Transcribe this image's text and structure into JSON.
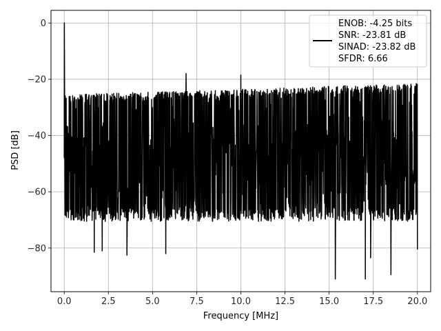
{
  "chart_data": {
    "type": "line",
    "title": "",
    "xlabel": "Frequency [MHz]",
    "ylabel": "PSD [dB]",
    "xlim": [
      -0.75,
      20.75
    ],
    "ylim": [
      -95.5,
      4.5
    ],
    "xticks": [
      0.0,
      2.5,
      5.0,
      7.5,
      10.0,
      12.5,
      15.0,
      17.5,
      20.0
    ],
    "xtick_labels": [
      "0.0",
      "2.5",
      "5.0",
      "7.5",
      "10.0",
      "12.5",
      "15.0",
      "17.5",
      "20.0"
    ],
    "yticks": [
      0,
      -20,
      -40,
      -60,
      -80
    ],
    "ytick_labels": [
      "0",
      "−20",
      "−40",
      "−60",
      "−80"
    ],
    "grid": true,
    "legend_position": "top-right",
    "series": [
      {
        "color": "#000000",
        "noise_floor_top_db": -27,
        "noise_floor_bottom_db": -68,
        "peaks": [
          {
            "x": 0.0,
            "y": 0.0
          },
          {
            "x": 6.9,
            "y": -18
          },
          {
            "x": 10.0,
            "y": -18.5
          }
        ],
        "dips": [
          {
            "x": 15.35,
            "y": -91
          },
          {
            "x": 17.05,
            "y": -91
          },
          {
            "x": 18.5,
            "y": -89.5
          },
          {
            "x": 17.35,
            "y": -83.5
          },
          {
            "x": 3.55,
            "y": -82.5
          },
          {
            "x": 5.75,
            "y": -82
          },
          {
            "x": 1.7,
            "y": -81.5
          },
          {
            "x": 2.15,
            "y": -81
          },
          {
            "x": 20.0,
            "y": -80.5
          }
        ]
      }
    ],
    "legend": {
      "lines": [
        "ENOB: -4.25 bits",
        "SNR: -23.81 dB",
        "SINAD: -23.82 dB",
        "SFDR: 6.66"
      ]
    }
  }
}
